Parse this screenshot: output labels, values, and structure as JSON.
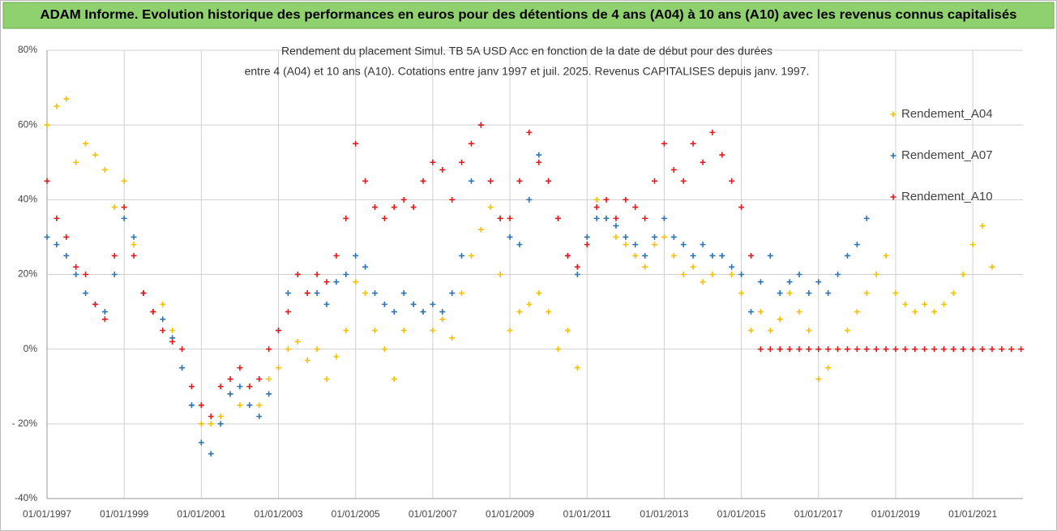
{
  "chart_data": {
    "type": "scatter",
    "title": "ADAM Informe. Evolution historique des performances en euros pour des détentions de 4 ans (A04) à 10 ans (A10) avec les revenus connus capitalisés",
    "subtitle": [
      "Rendement du placement Simul. TB 5A USD Acc en fonction de la date de début pour des durées",
      "entre 4 (A04) et 10 ans (A10). Cotations entre janv 1997 et juil. 2025. Revenus CAPITALISES depuis janv. 1997."
    ],
    "x": [
      1997,
      1997.25,
      1997.5,
      1997.75,
      1998,
      1998.25,
      1998.5,
      1998.75,
      1999,
      1999.25,
      1999.5,
      1999.75,
      2000,
      2000.25,
      2000.5,
      2000.75,
      2001,
      2001.25,
      2001.5,
      2001.75,
      2002,
      2002.25,
      2002.5,
      2002.75,
      2003,
      2003.25,
      2003.5,
      2003.75,
      2004,
      2004.25,
      2004.5,
      2004.75,
      2005,
      2005.25,
      2005.5,
      2005.75,
      2006,
      2006.25,
      2006.5,
      2006.75,
      2007,
      2007.25,
      2007.5,
      2007.75,
      2008,
      2008.25,
      2008.5,
      2008.75,
      2009,
      2009.25,
      2009.5,
      2009.75,
      2010,
      2010.25,
      2010.5,
      2010.75,
      2011,
      2011.25,
      2011.5,
      2011.75,
      2012,
      2012.25,
      2012.5,
      2012.75,
      2013,
      2013.25,
      2013.5,
      2013.75,
      2014,
      2014.25,
      2014.5,
      2014.75,
      2015,
      2015.25,
      2015.5,
      2015.75,
      2016,
      2016.25,
      2016.5,
      2016.75,
      2017,
      2017.25,
      2017.5,
      2017.75,
      2018,
      2018.25,
      2018.5,
      2018.75,
      2019,
      2019.25,
      2019.5,
      2019.75,
      2020,
      2020.25,
      2020.5,
      2020.75,
      2021,
      2021.25,
      2021.5,
      2021.75,
      2022,
      2022.25
    ],
    "series": [
      {
        "name": "Rendement_A04",
        "color": "#f5c000",
        "values": [
          60,
          65,
          67,
          50,
          55,
          52,
          48,
          38,
          45,
          28,
          15,
          10,
          12,
          5,
          -5,
          -15,
          -20,
          -20,
          -18,
          -12,
          -15,
          -10,
          -15,
          -8,
          -5,
          0,
          2,
          -3,
          0,
          -8,
          -2,
          5,
          18,
          15,
          5,
          0,
          -8,
          5,
          12,
          10,
          5,
          8,
          3,
          15,
          25,
          32,
          38,
          20,
          5,
          10,
          12,
          15,
          10,
          0,
          5,
          -5,
          30,
          40,
          35,
          30,
          28,
          25,
          22,
          28,
          30,
          25,
          20,
          22,
          18,
          20,
          25,
          20,
          15,
          5,
          10,
          5,
          8,
          15,
          10,
          5,
          -8,
          -5,
          0,
          5,
          10,
          15,
          20,
          25,
          15,
          12,
          10,
          12,
          10,
          12,
          15,
          20,
          28,
          33,
          22,
          null,
          null,
          null
        ]
      },
      {
        "name": "Rendement_A07",
        "color": "#2e75b6",
        "values": [
          30,
          28,
          25,
          20,
          15,
          12,
          10,
          20,
          35,
          30,
          15,
          10,
          8,
          3,
          -5,
          -15,
          -25,
          -28,
          -20,
          -12,
          -10,
          -15,
          -18,
          -12,
          5,
          15,
          20,
          15,
          15,
          12,
          18,
          20,
          25,
          22,
          15,
          12,
          10,
          15,
          12,
          10,
          12,
          10,
          15,
          25,
          45,
          60,
          45,
          35,
          30,
          28,
          40,
          52,
          45,
          35,
          25,
          20,
          30,
          35,
          35,
          33,
          30,
          28,
          25,
          30,
          35,
          30,
          28,
          25,
          28,
          25,
          25,
          22,
          20,
          10,
          18,
          25,
          15,
          18,
          20,
          15,
          18,
          15,
          20,
          25,
          28,
          35,
          null,
          null,
          null,
          null,
          null,
          null,
          null,
          null,
          null,
          null,
          null,
          null,
          null,
          null,
          null,
          null
        ]
      },
      {
        "name": "Rendement_A10",
        "color": "#e31a1c",
        "values": [
          45,
          35,
          30,
          22,
          20,
          12,
          8,
          25,
          38,
          25,
          15,
          10,
          5,
          2,
          0,
          -10,
          -15,
          -18,
          -10,
          -8,
          -5,
          -10,
          -8,
          0,
          5,
          10,
          20,
          15,
          20,
          18,
          25,
          35,
          55,
          45,
          38,
          35,
          38,
          40,
          38,
          45,
          50,
          48,
          40,
          50,
          55,
          60,
          45,
          35,
          35,
          45,
          58,
          50,
          45,
          35,
          25,
          22,
          28,
          38,
          40,
          35,
          40,
          38,
          35,
          45,
          55,
          48,
          45,
          55,
          50,
          58,
          52,
          45,
          38,
          25,
          0,
          0,
          0,
          0,
          0,
          0,
          0,
          0,
          0,
          0,
          0,
          0,
          0,
          0,
          0,
          0,
          0,
          0,
          0,
          0,
          0,
          0,
          0,
          0,
          0,
          0,
          0,
          0
        ]
      }
    ],
    "xlim": [
      1997,
      2022.3
    ],
    "xticks": [
      {
        "value": 1997,
        "label": "01/01/1997"
      },
      {
        "value": 1999,
        "label": "01/01/1999"
      },
      {
        "value": 2001,
        "label": "01/01/2001"
      },
      {
        "value": 2003,
        "label": "01/01/2003"
      },
      {
        "value": 2005,
        "label": "01/01/2005"
      },
      {
        "value": 2007,
        "label": "01/01/2007"
      },
      {
        "value": 2009,
        "label": "01/01/2009"
      },
      {
        "value": 2011,
        "label": "01/01/2011"
      },
      {
        "value": 2013,
        "label": "01/01/2013"
      },
      {
        "value": 2015,
        "label": "01/01/2015"
      },
      {
        "value": 2017,
        "label": "01/01/2017"
      },
      {
        "value": 2019,
        "label": "01/01/2019"
      },
      {
        "value": 2021,
        "label": "01/01/2021"
      }
    ],
    "ylim": [
      -40,
      80
    ],
    "yticks": [
      {
        "value": 80,
        "label": "80%"
      },
      {
        "value": 60,
        "label": "60%"
      },
      {
        "value": 40,
        "label": "40%"
      },
      {
        "value": 20,
        "label": "20%"
      },
      {
        "value": 0,
        "label": "0%"
      },
      {
        "value": -20,
        "label": "- 20%"
      },
      {
        "value": -40,
        "label": "-40%"
      }
    ],
    "grid": true,
    "legend": "right"
  }
}
